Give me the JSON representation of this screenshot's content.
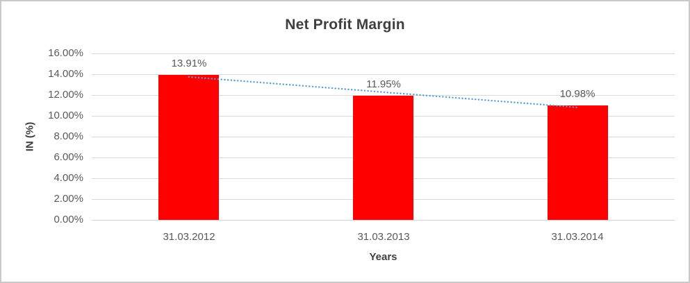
{
  "chart_data": {
    "type": "bar",
    "title": "Net Profit Margin",
    "xlabel": "Years",
    "ylabel": "IN (%)",
    "categories": [
      "31.03.2012",
      "31.03.2013",
      "31.03.2014"
    ],
    "series": [
      {
        "name": "Net Profit Margin",
        "values": [
          13.91,
          11.95,
          10.98
        ]
      }
    ],
    "data_labels": [
      "13.91%",
      "11.95%",
      "10.98%"
    ],
    "y_tick_labels": [
      "0.00%",
      "2.00%",
      "4.00%",
      "6.00%",
      "8.00%",
      "10.00%",
      "12.00%",
      "14.00%",
      "16.00%"
    ],
    "ylim": [
      0,
      16
    ],
    "y_tick_step": 2,
    "grid": true,
    "legend_position": "none",
    "trendline": {
      "type": "linear",
      "style": "dotted",
      "color": "#5b9bd5"
    },
    "colors": {
      "bar_fill": "#ff0000",
      "gridline": "#d9d9d9",
      "title_text": "#3f3f3f",
      "tick_text": "#595959",
      "frame_border": "#c9c9c9",
      "background": "#ffffff"
    }
  }
}
